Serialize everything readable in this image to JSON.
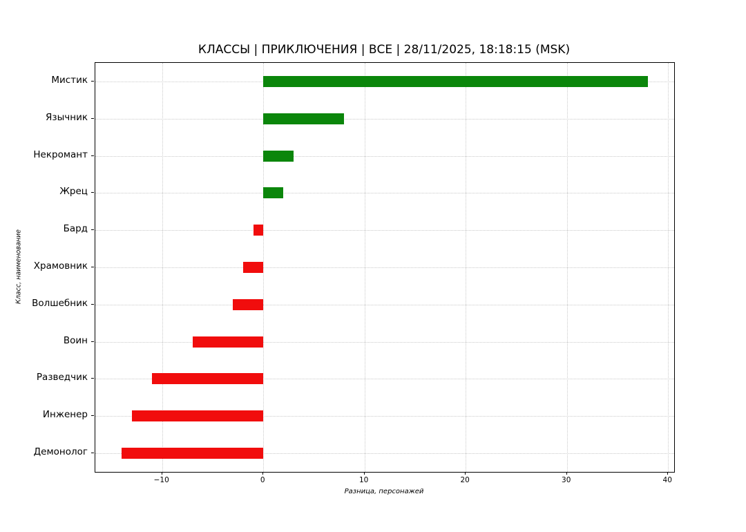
{
  "title": "КЛАССЫ | ПРИКЛЮЧЕНИЯ | ВСЕ | 28/11/2025, 18:18:15 (MSK)",
  "chart_data": {
    "type": "bar",
    "orientation": "horizontal",
    "title": "КЛАССЫ | ПРИКЛЮЧЕНИЯ | ВСЕ | 28/11/2025, 18:18:15 (MSK)",
    "categories": [
      "Мистик",
      "Язычник",
      "Некромант",
      "Жрец",
      "Бард",
      "Храмовник",
      "Волшебник",
      "Воин",
      "Разведчик",
      "Инженер",
      "Демонолог"
    ],
    "values": [
      38,
      8,
      3,
      2,
      -1,
      -2,
      -3,
      -7,
      -11,
      -13,
      -14
    ],
    "xlabel": "Разница, персонажей",
    "ylabel": "Класс, наименование",
    "xticks": [
      -10,
      0,
      10,
      20,
      30,
      40
    ],
    "xlim": [
      -16.6,
      40.6
    ],
    "grid": true,
    "grid_style": "dotted",
    "legend": false,
    "positive_color": "#0b860b",
    "negative_color": "#f10d0d",
    "background_color": "#ffffff",
    "spine_color": "#000000"
  }
}
